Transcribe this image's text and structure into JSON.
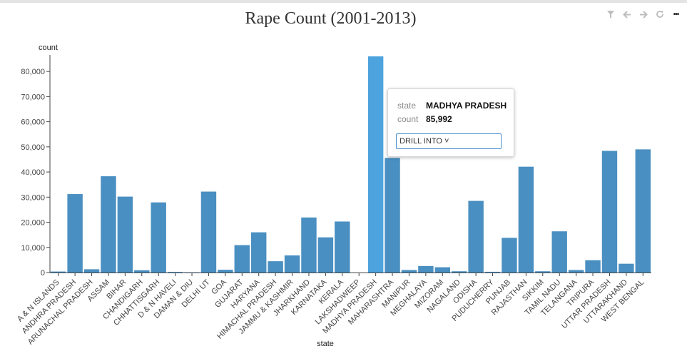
{
  "chart_data": {
    "type": "bar",
    "title": "Rape Count (2001-2013)",
    "xlabel": "state",
    "ylabel": "count",
    "ylim": [
      0,
      86000
    ],
    "yticks": [
      "0",
      "10,000",
      "20,000",
      "30,000",
      "40,000",
      "50,000",
      "60,000",
      "70,000",
      "80,000"
    ],
    "ytick_values": [
      0,
      10000,
      20000,
      30000,
      40000,
      50000,
      60000,
      70000,
      80000
    ],
    "categories": [
      "A & N ISLANDS",
      "ANDHRA PRADESH",
      "ARUNACHAL PRADESH",
      "ASSAM",
      "BIHAR",
      "CHANDIGARH",
      "CHHATTISGARH",
      "D & N HAVELI",
      "DAMAN & DIU",
      "DELHI UT",
      "GOA",
      "GUJARAT",
      "HARYANA",
      "HIMACHAL PRADESH",
      "JAMMU & KASHMIR",
      "JHARKHAND",
      "KARNATAKA",
      "KERALA",
      "LAKSHADWEEP",
      "MADHYA PRADESH",
      "MAHARASHTRA",
      "MANIPUR",
      "MEGHALAYA",
      "MIZORAM",
      "NAGALAND",
      "ODISHA",
      "PUDUCHERRY",
      "PUNJAB",
      "RAJASTHAN",
      "SIKKIM",
      "TAMIL NADU",
      "TELANGANA",
      "TRIPURA",
      "UTTAR PRADESH",
      "UTTARAKHAND",
      "WEST BENGAL"
    ],
    "values": [
      400,
      31200,
      1300,
      38300,
      30200,
      900,
      27900,
      250,
      100,
      32200,
      1100,
      10900,
      16000,
      4500,
      6800,
      21900,
      14000,
      20300,
      10,
      85992,
      45600,
      1000,
      2600,
      2100,
      500,
      28500,
      300,
      13800,
      42100,
      500,
      16400,
      1000,
      4900,
      48400,
      3500,
      49000
    ],
    "highlight_index": 19,
    "grid": false,
    "legend": "none",
    "bar_color": "#4a8fc1",
    "highlight_color": "#4ca3dd"
  },
  "tooltip": {
    "state_key": "state",
    "state_value": "MADHYA PRADESH",
    "count_key": "count",
    "count_value": "85,992",
    "drill_label": "DRILL INTO ˅"
  },
  "toolbar": {
    "icons": [
      "filter-icon",
      "back-arrow-icon",
      "forward-arrow-icon",
      "refresh-icon",
      "more-icon"
    ],
    "more_label": "•••",
    "icon_color": "#bdbdbd"
  }
}
